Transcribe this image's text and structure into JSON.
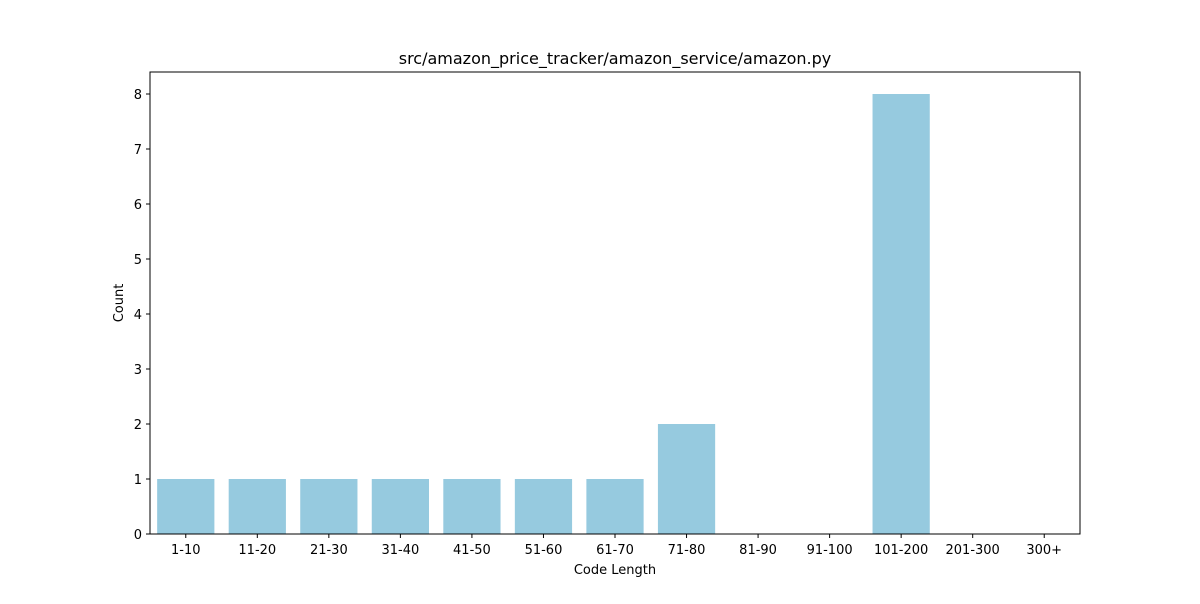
{
  "chart_data": {
    "type": "bar",
    "title": "src/amazon_price_tracker/amazon_service/amazon.py",
    "xlabel": "Code Length",
    "ylabel": "Count",
    "categories": [
      "1-10",
      "11-20",
      "21-30",
      "31-40",
      "41-50",
      "51-60",
      "61-70",
      "71-80",
      "81-90",
      "91-100",
      "101-200",
      "201-300",
      "300+"
    ],
    "values": [
      1,
      1,
      1,
      1,
      1,
      1,
      1,
      2,
      0,
      0,
      8,
      0,
      0
    ],
    "ylim": [
      0,
      8.4
    ],
    "yticks": [
      0,
      1,
      2,
      3,
      4,
      5,
      6,
      7,
      8
    ],
    "bar_color": "#96cadf",
    "grid": false,
    "legend": false
  }
}
